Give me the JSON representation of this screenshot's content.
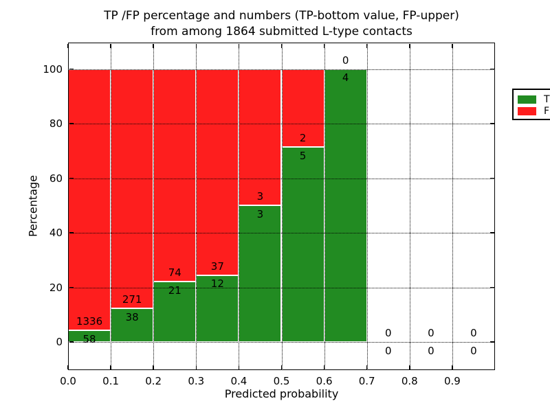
{
  "chart_data": {
    "type": "bar",
    "variant": "stacked-100-percent-histogram",
    "title_line1": "TP /FP percentage and numbers (TP-bottom value, FP-upper)",
    "title_line2": "from among 1864 submitted L-type contacts",
    "xlabel": "Predicted probability",
    "ylabel": "Percentage",
    "x_tick_labels": [
      "0.0",
      "0.1",
      "0.2",
      "0.3",
      "0.4",
      "0.5",
      "0.6",
      "0.7",
      "0.8",
      "0.9"
    ],
    "y_ticks": [
      0,
      20,
      40,
      60,
      80,
      100
    ],
    "y_tick_labels": [
      "0",
      "20",
      "40",
      "60",
      "80",
      "100"
    ],
    "xlim": [
      0.0,
      1.0
    ],
    "ylim": [
      -10.6,
      109.6
    ],
    "grid_style": "dotted",
    "total_contacts_in_title": 1864,
    "bin_width": 0.1,
    "bin_starts": [
      0.0,
      0.1,
      0.2,
      0.3,
      0.4,
      0.5,
      0.6,
      0.7,
      0.8,
      0.9
    ],
    "series": [
      {
        "name": "TP",
        "position": "bottom",
        "color": "#228b22",
        "values": [
          58,
          38,
          21,
          12,
          3,
          5,
          4,
          0,
          0,
          0
        ]
      },
      {
        "name": "FP",
        "position": "top",
        "color": "#fe1e1e",
        "values": [
          1336,
          271,
          74,
          37,
          3,
          2,
          0,
          0,
          0,
          0
        ]
      }
    ],
    "tp_percent_of_bin": [
      4.16,
      12.3,
      22.11,
      24.49,
      50.0,
      71.43,
      100.0,
      0,
      0,
      0
    ],
    "legend": {
      "position": "upper-right",
      "entries": [
        {
          "label": "TP",
          "color": "#228b22"
        },
        {
          "label": "FP",
          "color": "#fe1e1e"
        }
      ]
    }
  },
  "colors": {
    "tp_green": "#228b22",
    "fp_red": "#fe1e1e",
    "text": "#000000",
    "background": "#ffffff",
    "grid": "#000000",
    "bar_edge": "#ffffff"
  }
}
